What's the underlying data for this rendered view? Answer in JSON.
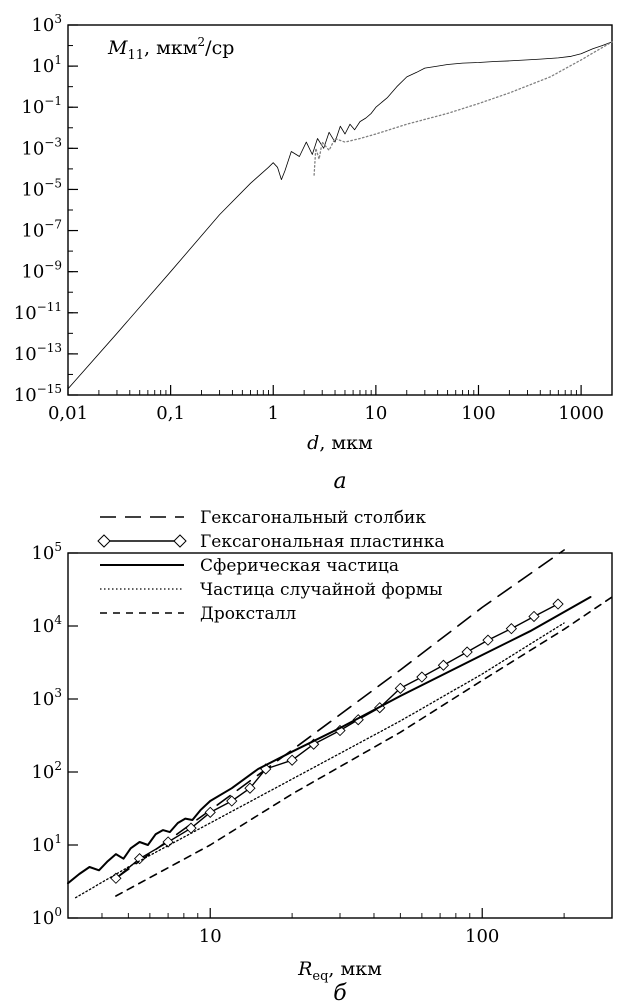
{
  "chart_data": [
    {
      "type": "line",
      "panel_label": "а",
      "ylabel_symbol": "M",
      "ylabel_sub": "11",
      "ylabel_unit": ", мкм",
      "ylabel_unit_sup": "2",
      "ylabel_unit_tail": "/ср",
      "xlabel_symbol": "d",
      "xlabel_unit": ", мкм",
      "x_scale": "log",
      "y_scale": "log",
      "xlim": [
        0.01,
        2000
      ],
      "ylim": [
        1e-15,
        1000
      ],
      "x_ticks": [
        {
          "value": 0.01,
          "label": "0,01"
        },
        {
          "value": 0.1,
          "label": "0,1"
        },
        {
          "value": 1,
          "label": "1"
        },
        {
          "value": 10,
          "label": "10"
        },
        {
          "value": 100,
          "label": "100"
        },
        {
          "value": 1000,
          "label": "1000"
        }
      ],
      "y_ticks": [
        {
          "exp": -15,
          "base": "10",
          "sup": "−15"
        },
        {
          "exp": -13,
          "base": "10",
          "sup": "−13"
        },
        {
          "exp": -11,
          "base": "10",
          "sup": "−11"
        },
        {
          "exp": -9,
          "base": "10",
          "sup": "−9"
        },
        {
          "exp": -7,
          "base": "10",
          "sup": "−7"
        },
        {
          "exp": -5,
          "base": "10",
          "sup": "−5"
        },
        {
          "exp": -3,
          "base": "10",
          "sup": "−3"
        },
        {
          "exp": -1,
          "base": "10",
          "sup": "−1"
        },
        {
          "exp": 1,
          "base": "10",
          "sup": "1"
        },
        {
          "exp": 3,
          "base": "10",
          "sup": "3"
        }
      ],
      "series": [
        {
          "style": "solid-thin",
          "color": "#000000",
          "x": [
            0.01,
            0.03,
            0.1,
            0.3,
            0.6,
            0.9,
            1.0,
            1.1,
            1.2,
            1.3,
            1.5,
            1.8,
            2.1,
            2.4,
            2.7,
            3.1,
            3.5,
            4.0,
            4.5,
            5.0,
            5.6,
            6.2,
            7.0,
            8.0,
            9.0,
            10,
            13,
            16,
            20,
            25,
            30,
            40,
            50,
            70,
            100,
            150,
            200,
            300,
            400,
            600,
            800,
            1000,
            1300,
            1600,
            2000
          ],
          "y": [
            2e-15,
            1e-12,
            1e-09,
            6e-07,
            2e-05,
            0.00012,
            0.0002,
            0.00012,
            3e-05,
            8e-05,
            0.0007,
            0.0004,
            0.002,
            0.0005,
            0.003,
            0.001,
            0.006,
            0.002,
            0.012,
            0.005,
            0.015,
            0.008,
            0.02,
            0.03,
            0.05,
            0.1,
            0.3,
            1,
            3,
            5,
            8,
            10,
            12,
            14,
            15,
            17,
            18,
            20,
            22,
            25,
            30,
            40,
            70,
            100,
            150
          ]
        },
        {
          "style": "dotted",
          "color": "#808080",
          "x": [
            2.5,
            2.6,
            2.8,
            3.0,
            3.5,
            4.0,
            5.0,
            7.0,
            10,
            20,
            50,
            100,
            200,
            500,
            1000,
            2000
          ],
          "y": [
            5e-05,
            0.001,
            0.0003,
            0.002,
            0.0008,
            0.003,
            0.002,
            0.003,
            0.005,
            0.015,
            0.05,
            0.15,
            0.5,
            3,
            20,
            150
          ]
        }
      ]
    },
    {
      "type": "line",
      "panel_label": "б",
      "xlabel_symbol": "R",
      "xlabel_sub": "eq",
      "xlabel_unit": ", мкм",
      "x_scale": "log",
      "y_scale": "log",
      "xlim": [
        3,
        300
      ],
      "ylim": [
        1,
        100000
      ],
      "x_ticks": [
        {
          "value": 10,
          "label": "10"
        },
        {
          "value": 100,
          "label": "100"
        }
      ],
      "y_ticks": [
        {
          "exp": 0,
          "base": "10",
          "sup": "0"
        },
        {
          "exp": 1,
          "base": "10",
          "sup": "1"
        },
        {
          "exp": 2,
          "base": "10",
          "sup": "2"
        },
        {
          "exp": 3,
          "base": "10",
          "sup": "3"
        },
        {
          "exp": 4,
          "base": "10",
          "sup": "4"
        },
        {
          "exp": 5,
          "base": "10",
          "sup": "5"
        }
      ],
      "legend_position": "top-left",
      "series": [
        {
          "name": "Гексагональный столбик",
          "style": "long-dash",
          "x": [
            4.5,
            10,
            20,
            50,
            100,
            200
          ],
          "y": [
            3.5,
            30,
            200,
            2500,
            18000,
            110000
          ]
        },
        {
          "name": "Гексагональная пластинка",
          "style": "solid-diamond",
          "x": [
            4.5,
            5.5,
            7,
            8.5,
            10,
            12,
            14,
            16,
            20,
            24,
            30,
            35,
            42,
            50,
            60,
            72,
            88,
            105,
            128,
            155,
            190
          ],
          "y": [
            3.5,
            6.5,
            11,
            17,
            28,
            40,
            60,
            110,
            145,
            240,
            370,
            520,
            760,
            1400,
            2000,
            2900,
            4400,
            6400,
            9200,
            13500,
            20000
          ]
        },
        {
          "name": "Сферическая частица",
          "style": "solid-thick",
          "x": [
            3,
            3.3,
            3.6,
            3.9,
            4.2,
            4.5,
            4.8,
            5.1,
            5.5,
            5.9,
            6.3,
            6.7,
            7.1,
            7.6,
            8.1,
            8.6,
            9.2,
            10,
            12,
            15,
            20,
            30,
            50,
            100,
            150,
            250
          ],
          "y": [
            3,
            4,
            5,
            4.5,
            6,
            7.5,
            6.5,
            9,
            11,
            10,
            14,
            16,
            15,
            20,
            23,
            22,
            30,
            40,
            60,
            110,
            190,
            400,
            1100,
            4000,
            8500,
            25000
          ]
        },
        {
          "name": "Частица случайной формы",
          "style": "dotted",
          "x": [
            3.2,
            5,
            10,
            20,
            50,
            100,
            200
          ],
          "y": [
            1.9,
            5,
            20,
            80,
            500,
            2200,
            11000
          ]
        },
        {
          "name": "Дроксталл",
          "style": "short-dash",
          "x": [
            4.5,
            10,
            20,
            50,
            100,
            200,
            300
          ],
          "y": [
            2,
            10,
            50,
            350,
            1800,
            9000,
            25000
          ]
        }
      ]
    }
  ]
}
